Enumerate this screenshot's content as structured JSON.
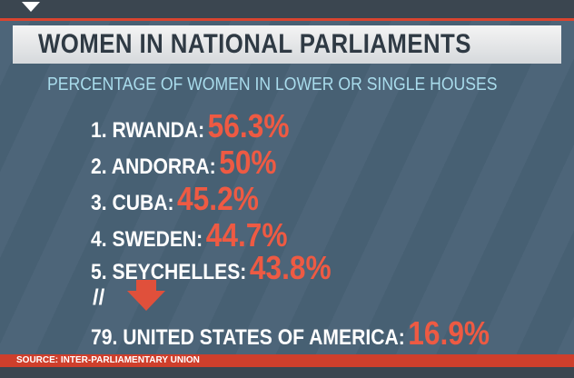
{
  "header": {
    "title": "WOMEN IN NATIONAL PARLIAMENTS",
    "subtitle": "PERCENTAGE OF WOMEN IN LOWER OR SINGLE HOUSES"
  },
  "list": [
    {
      "label": "1. RWANDA:",
      "value": "56.3%"
    },
    {
      "label": "2. ANDORRA:",
      "value": "50%"
    },
    {
      "label": "3. CUBA:",
      "value": "45.2%"
    },
    {
      "label": "4. SWEDEN:",
      "value": "44.7%"
    },
    {
      "label": "5. SEYCHELLES:",
      "value": "43.8%"
    }
  ],
  "separator": "//",
  "highlight": {
    "label": "79. UNITED STATES OF AMERICA:",
    "value": "16.9%"
  },
  "footer": {
    "source": "SOURCE: INTER-PARLIAMENTARY UNION"
  }
}
